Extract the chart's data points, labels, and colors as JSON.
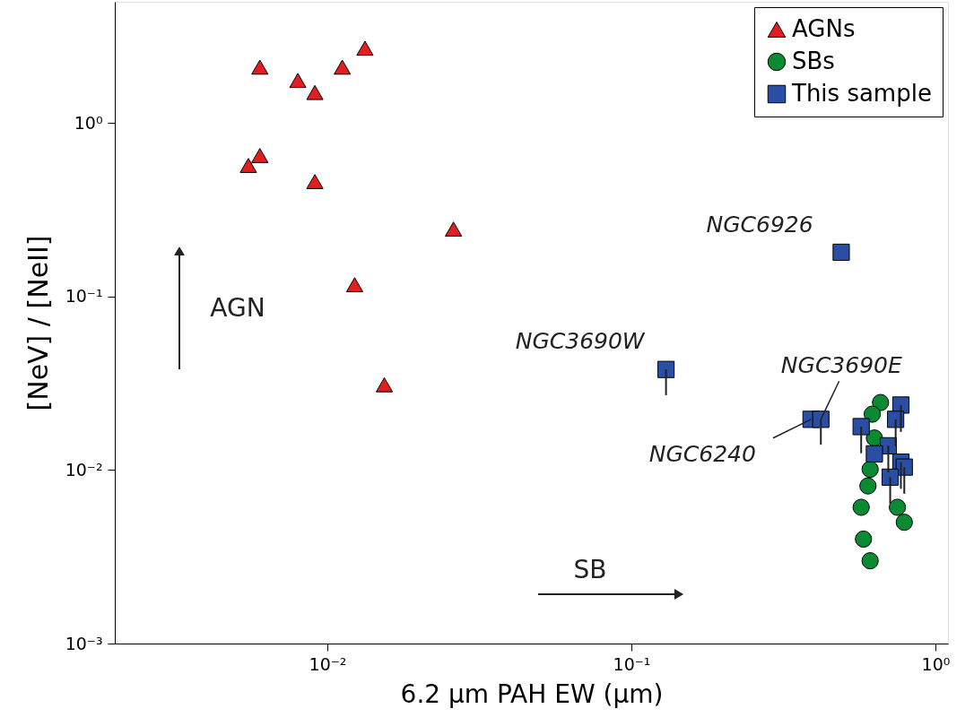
{
  "chart_data": {
    "type": "scatter",
    "xlabel": "6.2 μm PAH EW (μm)",
    "ylabel": "[NeV] / [NeII]",
    "log": "xy",
    "xlim": [
      0.002,
      1.1
    ],
    "ylim": [
      0.001,
      5
    ],
    "xticks": [
      {
        "value": 0.01,
        "label": "10⁻²"
      },
      {
        "value": 0.1,
        "label": "10⁻¹"
      },
      {
        "value": 1,
        "label": "10⁰"
      }
    ],
    "yticks": [
      {
        "value": 0.001,
        "label": "10⁻³"
      },
      {
        "value": 0.01,
        "label": "10⁻²"
      },
      {
        "value": 0.1,
        "label": "10⁻¹"
      },
      {
        "value": 1,
        "label": "10⁰"
      }
    ],
    "legend": "top right",
    "grid": false,
    "series": [
      {
        "name": "AGNs",
        "color": "#e31e1e",
        "marker": "triangle",
        "x": [
          0.006,
          0.008,
          0.0091,
          0.0112,
          0.0133,
          0.006,
          0.0055,
          0.0091,
          0.026,
          0.0123,
          0.0154
        ],
        "values": [
          2.1,
          1.76,
          1.5,
          2.1,
          2.7,
          0.65,
          0.57,
          0.46,
          0.245,
          0.117,
          0.031
        ]
      },
      {
        "name": "SBs",
        "color": "#0b8a34",
        "marker": "circle",
        "x": [
          0.66,
          0.62,
          0.63,
          0.61,
          0.6,
          0.57,
          0.75,
          0.79,
          0.58,
          0.61
        ],
        "values": [
          0.0245,
          0.021,
          0.0153,
          0.0101,
          0.0081,
          0.0061,
          0.0061,
          0.005,
          0.004,
          0.003
        ]
      },
      {
        "name": "This sample",
        "color": "#2a4ea3",
        "marker": "square",
        "x": [
          0.49,
          0.13,
          0.39,
          0.42,
          0.57,
          0.77,
          0.74,
          0.7,
          0.63,
          0.77,
          0.79,
          0.71
        ],
        "values": [
          0.18,
          0.038,
          0.0196,
          0.0196,
          0.0178,
          0.0237,
          0.0196,
          0.0138,
          0.0124,
          0.0111,
          0.0104,
          0.0091
        ],
        "errors": [
          null,
          [
            0.027,
            0.038
          ],
          null,
          [
            0.014,
            0.0196
          ],
          [
            0.0125,
            0.0178
          ],
          [
            0.0166,
            0.0237
          ],
          [
            0.0137,
            0.0196
          ],
          [
            0.0097,
            0.0138
          ],
          null,
          [
            0.0078,
            0.0111
          ],
          [
            0.0073,
            0.0104
          ],
          [
            0.0064,
            0.0091
          ]
        ]
      }
    ],
    "annotations": [
      {
        "text": "NGC6926",
        "x": 0.49,
        "y": 0.18
      },
      {
        "text": "NGC3690W",
        "x": 0.13,
        "y": 0.038
      },
      {
        "text": "NGC3690E",
        "x": 0.42,
        "y": 0.0196
      },
      {
        "text": "NGC6240",
        "x": 0.39,
        "y": 0.0196
      },
      "AGN",
      "SB"
    ]
  }
}
